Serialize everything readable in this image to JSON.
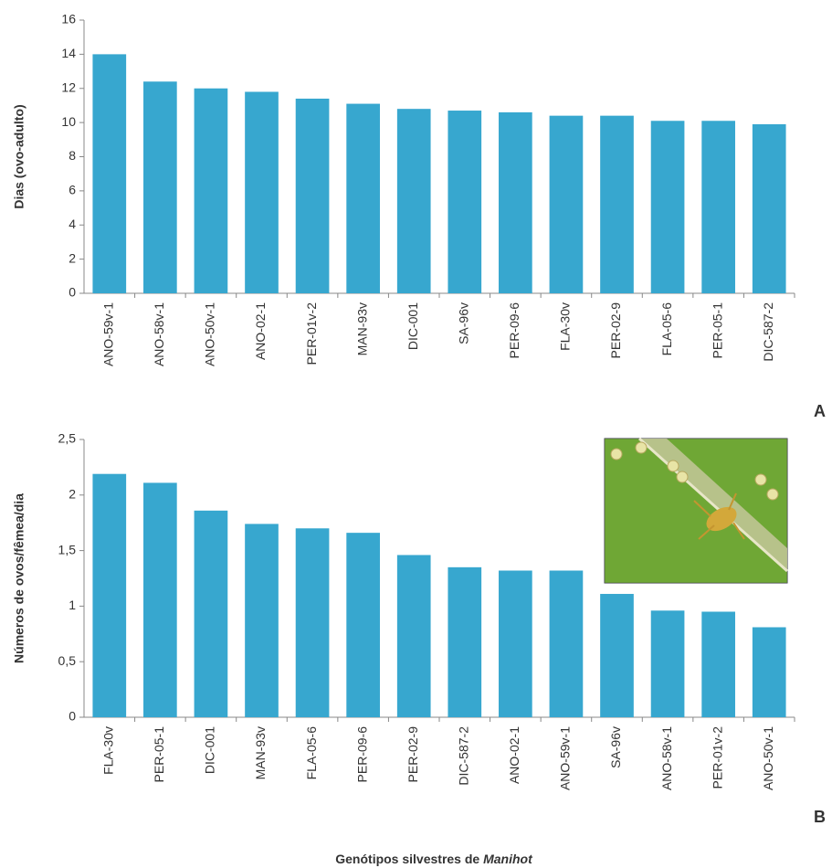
{
  "chart_data": [
    {
      "type": "bar",
      "panel": "A",
      "y_label": "Dias (ovo-adulto)",
      "categories": [
        "ANO-59v-1",
        "ANO-58v-1",
        "ANO-50v-1",
        "ANO-02-1",
        "PER-01v-2",
        "MAN-93v",
        "DIC-001",
        "SA-96v",
        "PER-09-6",
        "FLA-30v",
        "PER-02-9",
        "FLA-05-6",
        "PER-05-1",
        "DIC-587-2"
      ],
      "values": [
        14.0,
        12.4,
        12.0,
        11.8,
        11.4,
        11.1,
        10.8,
        10.7,
        10.6,
        10.4,
        10.4,
        10.1,
        10.1,
        9.9
      ],
      "color": "#37a7cf",
      "ylim": [
        0,
        16
      ],
      "yticks": [
        0,
        2,
        4,
        6,
        8,
        10,
        12,
        14,
        16
      ],
      "grid": false
    },
    {
      "type": "bar",
      "panel": "B",
      "y_label": "Números de ovos/fêmea/dia",
      "x_label": "Genótipos silvestres de",
      "x_label_italic": "Manihot",
      "categories": [
        "FLA-30v",
        "PER-05-1",
        "DIC-001",
        "MAN-93v",
        "FLA-05-6",
        "PER-09-6",
        "PER-02-9",
        "DIC-587-2",
        "ANO-02-1",
        "ANO-59v-1",
        "SA-96v",
        "ANO-58v-1",
        "PER-01v-2",
        "ANO-50v-1"
      ],
      "values": [
        2.19,
        2.11,
        1.86,
        1.74,
        1.7,
        1.66,
        1.46,
        1.35,
        1.32,
        1.32,
        1.11,
        0.96,
        0.95,
        0.81
      ],
      "color": "#37a7cf",
      "ylim": [
        0,
        2.5
      ],
      "yticks": [
        0,
        {
          "value": 0.5,
          "label": "0,5"
        },
        1,
        {
          "value": 1.5,
          "label": "1,5"
        },
        2,
        {
          "value": 2.5,
          "label": "2,5"
        }
      ],
      "grid": false
    }
  ]
}
